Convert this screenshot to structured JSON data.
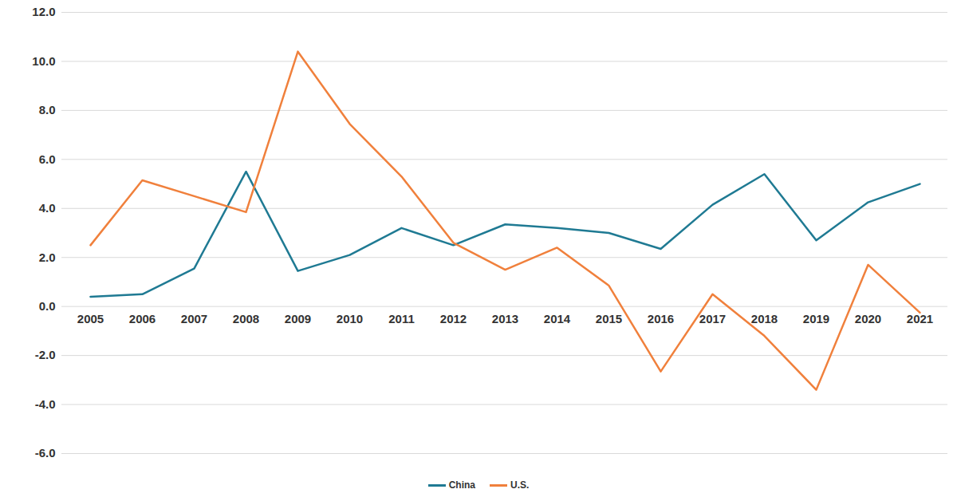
{
  "chart_data": {
    "type": "line",
    "categories": [
      "2005",
      "2006",
      "2007",
      "2008",
      "2009",
      "2010",
      "2011",
      "2012",
      "2013",
      "2014",
      "2015",
      "2016",
      "2017",
      "2018",
      "2019",
      "2020",
      "2021"
    ],
    "series": [
      {
        "name": "China",
        "color": "#1f7a93",
        "values": [
          0.4,
          0.5,
          1.55,
          5.5,
          1.45,
          2.1,
          3.2,
          2.5,
          3.35,
          3.2,
          3.0,
          2.35,
          4.15,
          5.4,
          2.7,
          4.25,
          5.0
        ]
      },
      {
        "name": "U.S.",
        "color": "#f0803c",
        "values": [
          2.5,
          5.15,
          4.5,
          3.85,
          10.4,
          7.45,
          5.3,
          2.6,
          1.5,
          2.4,
          0.85,
          -2.65,
          0.5,
          -1.2,
          -3.4,
          1.7,
          -0.25
        ]
      }
    ],
    "ylim": [
      -6,
      12
    ],
    "yticks": [
      {
        "value": -6,
        "label": "-6.0"
      },
      {
        "value": -4,
        "label": "-4.0"
      },
      {
        "value": -2,
        "label": "-2.0"
      },
      {
        "value": 0,
        "label": "0.0"
      },
      {
        "value": 2,
        "label": "2.0"
      },
      {
        "value": 4,
        "label": "4.0"
      },
      {
        "value": 6,
        "label": "6.0"
      },
      {
        "value": 8,
        "label": "8.0"
      },
      {
        "value": 10,
        "label": "10.0"
      },
      {
        "value": 12,
        "label": "12.0"
      }
    ],
    "grid": true,
    "legend": "bottom"
  }
}
